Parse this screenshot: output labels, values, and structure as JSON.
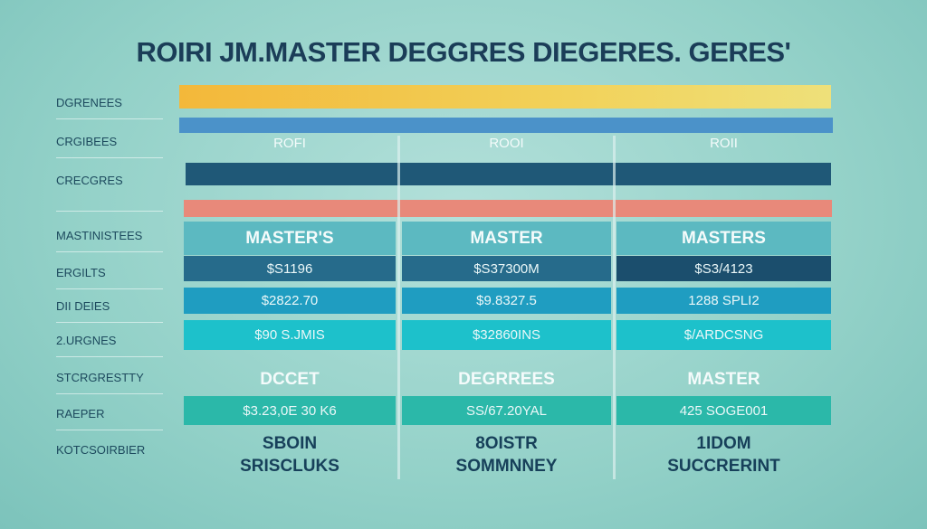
{
  "title": "ROIRI JM.MASTER DEGGRES DIEGERES. GERES'",
  "left_labels": [
    "DGRENEES",
    "CRGIBEES",
    "CRECGRES",
    "MASTINISTEES",
    "ERGILTS",
    "DII DEIES",
    "2.URGNES",
    "STCRGRESTTY",
    "RAEPER",
    "KOTCSOIRBIER"
  ],
  "columns": [
    {
      "header": "ROFI",
      "title": "MASTER'S",
      "r1": "$S1196",
      "r2": "$2822.70",
      "r3": "$90 S.JMIS",
      "sub": "DCCET",
      "r4": "$3.23,0E 30 K6",
      "b1": "SBOIN",
      "b2": "SRISCLUKS"
    },
    {
      "header": "ROOI",
      "title": "MASTER",
      "r1": "$S37300M",
      "r2": "$9.8327.5",
      "r3": "$32860INS",
      "sub": "DEGRREES",
      "r4": "SS/67.20YAL",
      "b1": "8OISTR",
      "b2": "SOMMNNEY"
    },
    {
      "header": "ROII",
      "title": "MASTERS",
      "r1": "$S3/4123",
      "r2": "1288 SPLI2",
      "r3": "$/ARDCSNG",
      "sub": "MASTER",
      "r4": "425 SOGE001",
      "b1": "1IDOM",
      "b2": "SUCCRERINT"
    }
  ],
  "colors": {
    "yellow": "#f3bc3c",
    "blue": "#4b92c9",
    "navy": "#1f5877",
    "salmon": "#e8897a",
    "teal_head": "#5cb9c1",
    "row1": "#266b8b",
    "row2": "#1f9dc1",
    "row3": "#1dc1cb",
    "row4": "#2bb8a9",
    "text_dark": "#1b3d58"
  }
}
